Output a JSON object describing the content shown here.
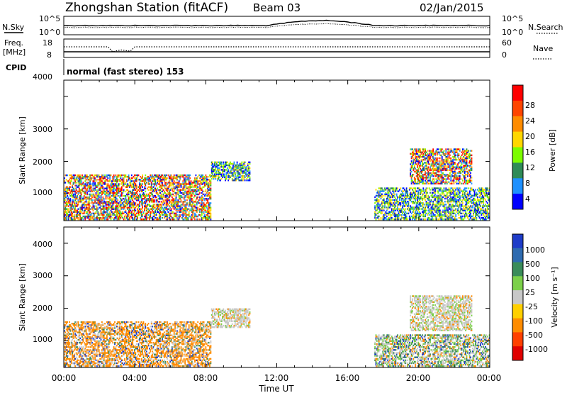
{
  "header": {
    "station": "Zhongshan Station (fitACF)",
    "beam": "Beam 03",
    "date": "02/Jan/2015"
  },
  "top_panels": {
    "nsky_label": "N.Sky",
    "nsky_ticks": [
      "10^5",
      "10^0"
    ],
    "nsearch_label": "N.Search",
    "nsearch_ticks": [
      "10^5",
      "10^0"
    ],
    "freq_label_1": "Freq.",
    "freq_label_2": "[MHz]",
    "freq_ticks": [
      "18",
      "8"
    ],
    "nave_label": "Nave",
    "nave_ticks": [
      "60",
      "0"
    ],
    "cpid_label": "CPID",
    "cpid_text": "normal (fast stereo) 153"
  },
  "power_panel": {
    "ylabel": "Slant Range [km]",
    "yticks": [
      "4000",
      "3000",
      "2000",
      "1000"
    ],
    "cbar_label": "Power [dB]",
    "cbar_ticks": [
      "28",
      "24",
      "20",
      "16",
      "12",
      "8",
      "4"
    ],
    "cbar_colors": [
      "#ff0000",
      "#ff4500",
      "#ff8c00",
      "#ffd700",
      "#7cfc00",
      "#2e8b57",
      "#1e90ff",
      "#0000ff"
    ]
  },
  "velocity_panel": {
    "ylabel": "Slant Range [km]",
    "yticks": [
      "4000",
      "3000",
      "2000",
      "1000"
    ],
    "cbar_label": "Velocity [m s⁻¹]",
    "cbar_ticks": [
      "1000",
      "500",
      "100",
      "25",
      "-25",
      "-100",
      "-500",
      "-1000"
    ],
    "cbar_colors": [
      "#1e3cc8",
      "#2e6bb0",
      "#3a8c5a",
      "#7cd04a",
      "#c8c8c8",
      "#ffd000",
      "#ff8c00",
      "#ff4000",
      "#e00000"
    ]
  },
  "xaxis": {
    "label": "Time UT",
    "ticks": [
      "00:00",
      "04:00",
      "08:00",
      "12:00",
      "16:00",
      "20:00",
      "00:00"
    ]
  },
  "chart_data": [
    {
      "type": "heatmap",
      "title": "Power",
      "xlabel": "Time UT",
      "ylabel": "Slant Range [km]",
      "xlim": [
        0,
        24
      ],
      "ylim": [
        180,
        4500
      ],
      "colorbar_label": "Power [dB]",
      "colorbar_range": [
        0,
        30
      ],
      "echo_regions": [
        {
          "t0": 0.0,
          "t1": 8.3,
          "r0": 200,
          "r1": 1600,
          "level": "high"
        },
        {
          "t0": 8.3,
          "t1": 10.5,
          "r0": 1400,
          "r1": 2000,
          "level": "medium"
        },
        {
          "t0": 17.5,
          "t1": 24.0,
          "r0": 200,
          "r1": 1200,
          "level": "medium"
        },
        {
          "t0": 19.5,
          "t1": 23.0,
          "r0": 1300,
          "r1": 2400,
          "level": "high"
        }
      ]
    },
    {
      "type": "heatmap",
      "title": "Velocity",
      "xlabel": "Time UT",
      "ylabel": "Slant Range [km]",
      "xlim": [
        0,
        24
      ],
      "ylim": [
        180,
        4500
      ],
      "colorbar_label": "Velocity [m s⁻¹]",
      "colorbar_range": [
        -1000,
        1000
      ],
      "echo_regions": [
        {
          "t0": 0.0,
          "t1": 8.3,
          "r0": 200,
          "r1": 1600,
          "sign": "negative"
        },
        {
          "t0": 8.3,
          "t1": 10.5,
          "r0": 1400,
          "r1": 2000,
          "sign": "near-zero"
        },
        {
          "t0": 17.5,
          "t1": 24.0,
          "r0": 200,
          "r1": 1200,
          "sign": "mixed"
        },
        {
          "t0": 19.5,
          "t1": 23.0,
          "r0": 1300,
          "r1": 2400,
          "sign": "near-zero"
        }
      ]
    }
  ]
}
